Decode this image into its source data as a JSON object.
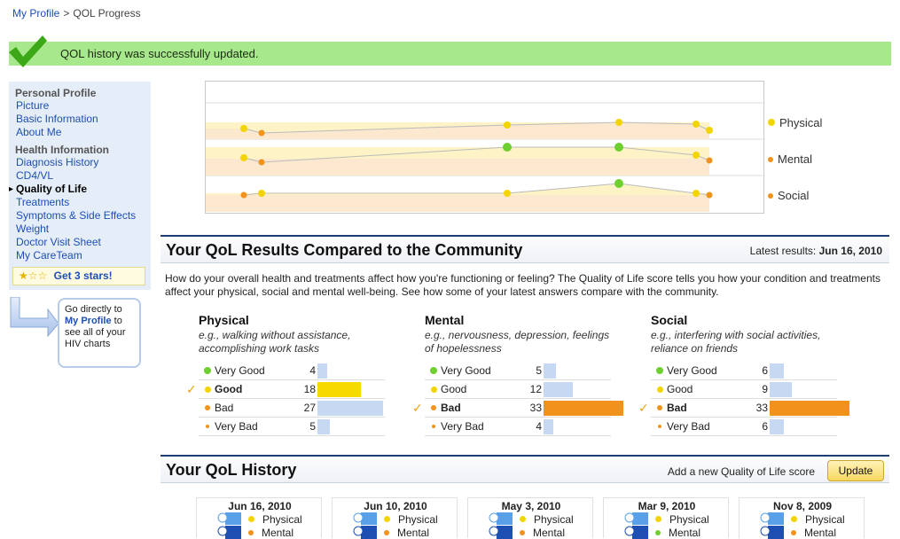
{
  "breadcrumb": {
    "parent": "My Profile",
    "sep": ">",
    "current": "QOL Progress"
  },
  "alert": {
    "message": "QOL history was successfully updated.",
    "color": "#a8e88c"
  },
  "sidebar": {
    "group1": "Personal Profile",
    "items1": [
      "Picture",
      "Basic Information",
      "About Me"
    ],
    "group2": "Health Information",
    "items2": [
      "Diagnosis History",
      "CD4/VL",
      "Quality of Life",
      "Treatments",
      "Symptoms & Side Effects",
      "Weight",
      "Doctor Visit Sheet",
      "My CareTeam"
    ],
    "stars": "Get 3 stars!",
    "callout_pre": "Go directly to",
    "callout_link": "My Profile",
    "callout_post": "to see all of your HIV charts"
  },
  "legend": {
    "physical": "Physical",
    "mental": "Mental",
    "social": "Social"
  },
  "colors": {
    "very_good": "#6fcf2f",
    "good": "#f2d400",
    "bad": "#f0921c",
    "very_bad": "#f0921c",
    "my_bar": "#f0921c",
    "good_bar": "#f7d900",
    "community": "#c6d8f2"
  },
  "community": {
    "title": "Your QoL Results Compared to the Community",
    "latest_label": "Latest results:",
    "latest_date": "Jun 16, 2010",
    "intro": "How do your overall health and treatments affect how you're functioning or feeling? The Quality of Life score tells you how your condition and treatments affect your physical, social and mental well-being. See how some of your latest answers compare with the community.",
    "columns": [
      {
        "title": "Physical",
        "desc": "e.g., walking without assistance, accomplishing work tasks",
        "rows": [
          {
            "label": "Very Good",
            "count": "4"
          },
          {
            "label": "Good",
            "count": "18"
          },
          {
            "label": "Bad",
            "count": "27"
          },
          {
            "label": "Very Bad",
            "count": "5"
          }
        ],
        "selected": 1
      },
      {
        "title": "Mental",
        "desc": "e.g., nervousness, depression, feelings of hopelessness",
        "rows": [
          {
            "label": "Very Good",
            "count": "5"
          },
          {
            "label": "Good",
            "count": "12"
          },
          {
            "label": "Bad",
            "count": "33"
          },
          {
            "label": "Very Bad",
            "count": "4"
          }
        ],
        "selected": 2
      },
      {
        "title": "Social",
        "desc": "e.g., interfering with social activities, reliance on friends",
        "rows": [
          {
            "label": "Very Good",
            "count": "6"
          },
          {
            "label": "Good",
            "count": "9"
          },
          {
            "label": "Bad",
            "count": "33"
          },
          {
            "label": "Very Bad",
            "count": "6"
          }
        ],
        "selected": 2
      }
    ]
  },
  "history": {
    "title": "Your QoL History",
    "add_label": "Add a new Quality of Life score",
    "update": "Update",
    "cards": [
      {
        "date": "Jun 16, 2010",
        "l1": "Physical",
        "l2": "Mental",
        "c1": "#f2d400",
        "c2": "#f0921c"
      },
      {
        "date": "Jun 10, 2010",
        "l1": "Physical",
        "l2": "Mental",
        "c1": "#f2d400",
        "c2": "#f0921c"
      },
      {
        "date": "May 3, 2010",
        "l1": "Physical",
        "l2": "Mental",
        "c1": "#f2d400",
        "c2": "#f0921c"
      },
      {
        "date": "Mar 9, 2010",
        "l1": "Physical",
        "l2": "Mental",
        "c1": "#f2d400",
        "c2": "#6fcf2f"
      },
      {
        "date": "Nov 8, 2009",
        "l1": "Physical",
        "l2": "Mental",
        "c1": "#f2d400",
        "c2": "#f0921c"
      }
    ]
  }
}
